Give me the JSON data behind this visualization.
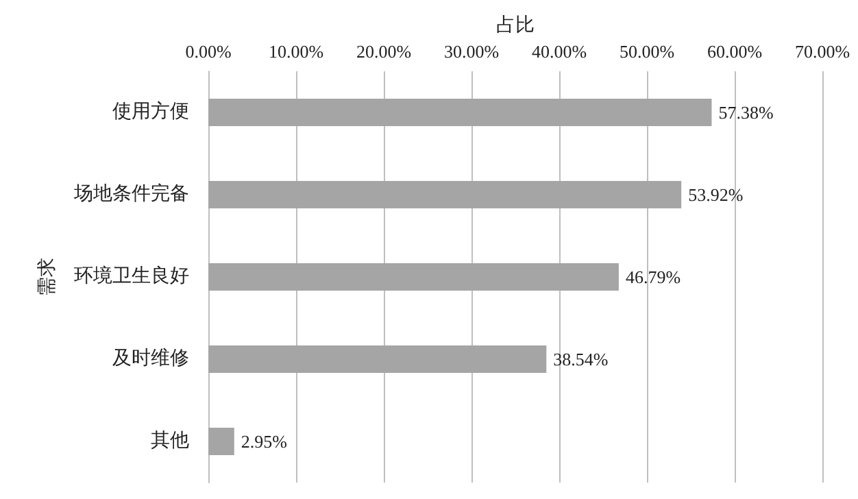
{
  "chart_data": {
    "type": "bar",
    "orientation": "horizontal",
    "xlabel": "占比",
    "ylabel": "需求",
    "categories": [
      "使用方便",
      "场地条件完备",
      "环境卫生良好",
      "及时维修",
      "其他"
    ],
    "values": [
      57.38,
      53.92,
      46.79,
      38.54,
      2.95
    ],
    "value_labels": [
      "57.38%",
      "53.92%",
      "46.79%",
      "38.54%",
      "2.95%"
    ],
    "color": "#a5a5a5",
    "xlim": [
      0,
      70
    ],
    "xticks": [
      {
        "value": 0,
        "label": "0.00%"
      },
      {
        "value": 10,
        "label": "10.00%"
      },
      {
        "value": 20,
        "label": "20.00%"
      },
      {
        "value": 30,
        "label": "30.00%"
      },
      {
        "value": 40,
        "label": "40.00%"
      },
      {
        "value": 50,
        "label": "50.00%"
      },
      {
        "value": 60,
        "label": "60.00%"
      },
      {
        "value": 70,
        "label": "70.00%"
      }
    ],
    "grid": "x"
  }
}
